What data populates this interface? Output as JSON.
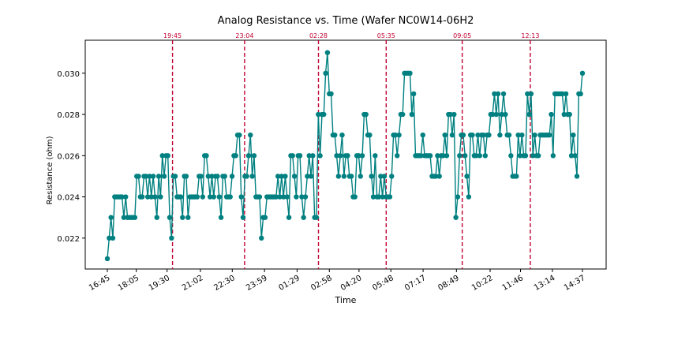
{
  "chart_data": {
    "type": "line",
    "title": "Analog Resistance vs. Time (Wafer NC0W14-06H2",
    "xlabel": "Time",
    "ylabel": "Resistance (ohm)",
    "ylim": [
      0.0205,
      0.0316
    ],
    "yticks": [
      0.022,
      0.024,
      0.026,
      0.028,
      0.03
    ],
    "xticks": [
      "16:45",
      "18:05",
      "19:30",
      "21:02",
      "22:30",
      "23:59",
      "01:29",
      "02:58",
      "04:20",
      "05:48",
      "07:17",
      "08:49",
      "10:22",
      "11:46",
      "13:14",
      "14:37"
    ],
    "marker_lines": [
      "19:45",
      "23:04",
      "02:28",
      "05:35",
      "09:05",
      "12:13"
    ],
    "grid": false,
    "legend": "none",
    "series": [
      {
        "color": "#008080",
        "values": [
          0.021,
          0.022,
          0.023,
          0.022,
          0.024,
          0.024,
          0.024,
          0.024,
          0.024,
          0.023,
          0.024,
          0.023,
          0.023,
          0.023,
          0.023,
          0.023,
          0.025,
          0.025,
          0.024,
          0.024,
          0.025,
          0.025,
          0.024,
          0.025,
          0.024,
          0.025,
          0.024,
          0.023,
          0.025,
          0.024,
          0.026,
          0.025,
          0.026,
          0.026,
          0.023,
          0.022,
          0.025,
          0.025,
          0.024,
          0.024,
          0.024,
          0.023,
          0.025,
          0.025,
          0.023,
          0.024,
          0.024,
          0.024,
          0.024,
          0.024,
          0.025,
          0.025,
          0.024,
          0.026,
          0.026,
          0.025,
          0.024,
          0.025,
          0.024,
          0.025,
          0.025,
          0.024,
          0.023,
          0.025,
          0.025,
          0.024,
          0.024,
          0.024,
          0.025,
          0.026,
          0.026,
          0.027,
          0.027,
          0.024,
          0.023,
          0.025,
          0.025,
          0.026,
          0.027,
          0.025,
          0.026,
          0.024,
          0.024,
          0.024,
          0.022,
          0.023,
          0.023,
          0.024,
          0.024,
          0.024,
          0.024,
          0.024,
          0.024,
          0.025,
          0.024,
          0.025,
          0.024,
          0.025,
          0.024,
          0.023,
          0.026,
          0.026,
          0.025,
          0.024,
          0.026,
          0.026,
          0.024,
          0.023,
          0.024,
          0.025,
          0.026,
          0.025,
          0.026,
          0.023,
          0.023,
          0.028,
          0.026,
          0.028,
          0.028,
          0.03,
          0.031,
          0.029,
          0.029,
          0.027,
          0.027,
          0.026,
          0.025,
          0.026,
          0.027,
          0.025,
          0.026,
          0.026,
          0.025,
          0.025,
          0.024,
          0.024,
          0.026,
          0.026,
          0.025,
          0.026,
          0.028,
          0.028,
          0.027,
          0.027,
          0.025,
          0.024,
          0.026,
          0.024,
          0.024,
          0.025,
          0.024,
          0.025,
          0.024,
          0.024,
          0.024,
          0.025,
          0.027,
          0.027,
          0.026,
          0.027,
          0.028,
          0.028,
          0.03,
          0.03,
          0.03,
          0.03,
          0.028,
          0.029,
          0.026,
          0.026,
          0.026,
          0.026,
          0.027,
          0.026,
          0.026,
          0.026,
          0.026,
          0.025,
          0.025,
          0.025,
          0.026,
          0.025,
          0.026,
          0.026,
          0.027,
          0.026,
          0.028,
          0.028,
          0.027,
          0.028,
          0.023,
          0.024,
          0.026,
          0.027,
          0.027,
          0.026,
          0.025,
          0.024,
          0.027,
          0.027,
          0.026,
          0.026,
          0.027,
          0.026,
          0.027,
          0.027,
          0.026,
          0.027,
          0.027,
          0.028,
          0.028,
          0.029,
          0.028,
          0.029,
          0.027,
          0.028,
          0.029,
          0.028,
          0.027,
          0.027,
          0.026,
          0.025,
          0.025,
          0.025,
          0.027,
          0.026,
          0.027,
          0.026,
          0.026,
          0.029,
          0.028,
          0.029,
          0.026,
          0.027,
          0.026,
          0.026,
          0.027,
          0.027,
          0.027,
          0.027,
          0.027,
          0.027,
          0.028,
          0.026,
          0.029,
          0.029,
          0.029,
          0.029,
          0.029,
          0.028,
          0.029,
          0.028,
          0.028,
          0.026,
          0.027,
          0.026,
          0.025,
          0.029,
          0.029,
          0.03
        ]
      }
    ]
  }
}
